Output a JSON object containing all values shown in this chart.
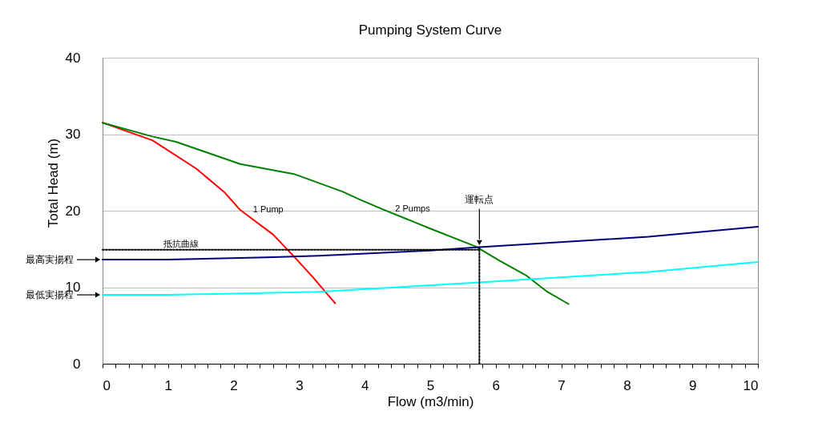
{
  "chart_data": {
    "type": "line",
    "title": "Pumping System Curve",
    "xlabel": "Flow (m3/min)",
    "ylabel": "Total Head (m)",
    "xlim": [
      0,
      10
    ],
    "ylim": [
      0,
      40
    ],
    "xticks": [
      0,
      {
        "value": 0.2,
        "label": null
      },
      {
        "value": 0.4,
        "label": null
      },
      {
        "value": 0.6,
        "label": null
      },
      {
        "value": 0.8,
        "label": null
      },
      1,
      {
        "value": 1.2,
        "label": null
      },
      {
        "value": 1.4,
        "label": null
      },
      {
        "value": 1.6,
        "label": null
      },
      {
        "value": 1.8,
        "label": null
      },
      2,
      {
        "value": 2.2,
        "label": null
      },
      {
        "value": 2.4,
        "label": null
      },
      {
        "value": 2.6,
        "label": null
      },
      {
        "value": 2.8,
        "label": null
      },
      3,
      {
        "value": 3.2,
        "label": null
      },
      {
        "value": 3.4,
        "label": null
      },
      {
        "value": 3.6,
        "label": null
      },
      {
        "value": 3.8,
        "label": null
      },
      4,
      {
        "value": 4.2,
        "label": null
      },
      {
        "value": 4.4,
        "label": null
      },
      {
        "value": 4.6,
        "label": null
      },
      {
        "value": 4.8,
        "label": null
      },
      5,
      {
        "value": 5.2,
        "label": null
      },
      {
        "value": 5.4,
        "label": null
      },
      {
        "value": 5.6,
        "label": null
      },
      {
        "value": 5.8,
        "label": null
      },
      6,
      {
        "value": 6.2,
        "label": null
      },
      {
        "value": 6.4,
        "label": null
      },
      {
        "value": 6.6,
        "label": null
      },
      {
        "value": 6.8,
        "label": null
      },
      7,
      {
        "value": 7.2,
        "label": null
      },
      {
        "value": 7.4,
        "label": null
      },
      {
        "value": 7.6,
        "label": null
      },
      {
        "value": 7.8,
        "label": null
      },
      8,
      {
        "value": 8.2,
        "label": null
      },
      {
        "value": 8.4,
        "label": null
      },
      {
        "value": 8.6,
        "label": null
      },
      {
        "value": 8.8,
        "label": null
      },
      9,
      {
        "value": 9.2,
        "label": null
      },
      {
        "value": 9.4,
        "label": null
      },
      {
        "value": 9.6,
        "label": null
      },
      {
        "value": 9.8,
        "label": null
      },
      10
    ],
    "yticks": [
      0,
      10,
      20,
      30,
      40
    ],
    "grid": "y",
    "legend": false,
    "marker": "none",
    "series": [
      {
        "color": "#ff0000",
        "x": [
          0,
          0.76,
          1.43,
          1.86,
          2.1,
          2.6,
          2.9,
          3.2,
          3.55
        ],
        "values": [
          31.5,
          29.2,
          25.5,
          22.4,
          20.1,
          16.9,
          14.2,
          11.4,
          7.9
        ]
      },
      {
        "color": "#008000",
        "x": [
          0,
          0.76,
          1.12,
          2.1,
          2.92,
          3.66,
          3.94,
          4.27,
          4.99,
          5.7,
          6.03,
          6.47,
          6.77,
          7.11
        ],
        "values": [
          31.5,
          29.7,
          29.0,
          26.1,
          24.8,
          22.5,
          21.4,
          20.2,
          17.7,
          15.3,
          13.6,
          11.5,
          9.5,
          7.8
        ]
      },
      {
        "color": "#000080",
        "x": [
          0,
          1,
          2.5,
          3.3,
          5,
          5.7,
          6.64,
          8.33,
          10
        ],
        "values": [
          13.6,
          13.6,
          13.9,
          14.1,
          14.8,
          15.2,
          15.7,
          16.6,
          17.9
        ]
      },
      {
        "color": "#00ffff",
        "x": [
          0,
          1,
          3.3,
          5.5,
          8.33,
          10
        ],
        "values": [
          9.0,
          9.0,
          9.4,
          10.5,
          12.0,
          13.3
        ]
      },
      {
        "color": "#000000",
        "line_style": "dotted",
        "x": [
          0,
          5.75
        ],
        "values": [
          14.9,
          14.9
        ]
      },
      {
        "color": "#000000",
        "line_style": "dotted",
        "x": [
          5.75,
          5.75
        ],
        "values": [
          0,
          15.2
        ]
      }
    ],
    "annotations": [
      {
        "text": "1 Pump",
        "x": 2.1,
        "y": 20.1
      },
      {
        "text": "2 Pumps",
        "x": 4.27,
        "y": 20.2
      },
      {
        "text": "抵抗曲線",
        "x": 1.2,
        "y": 14.9
      },
      "運転点",
      "最高実揚程",
      "最低実揚程"
    ]
  }
}
